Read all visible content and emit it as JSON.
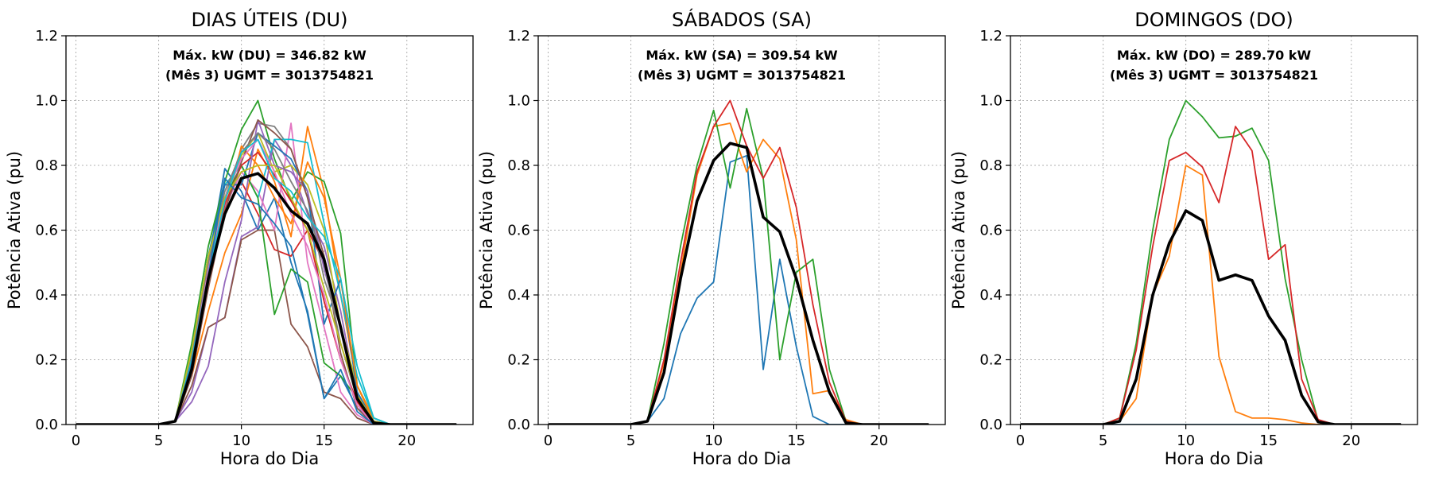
{
  "chart_data": [
    {
      "type": "line",
      "title": "DIAS ÚTEIS (DU)",
      "xlabel": "Hora do Dia",
      "ylabel": "Potência Ativa (pu)",
      "xlim": [
        -0.6,
        24
      ],
      "ylim": [
        0,
        1.2
      ],
      "xticks": [
        0,
        5,
        10,
        15,
        20
      ],
      "yticks": [
        0.0,
        0.2,
        0.4,
        0.6,
        0.8,
        1.0,
        1.2
      ],
      "grid": true,
      "annotation": [
        "Máx. kW (DU) = 346.82 kW",
        "(Mês 3)  UGMT = 3013754821"
      ],
      "x": [
        0,
        1,
        2,
        3,
        4,
        5,
        6,
        7,
        8,
        9,
        10,
        11,
        12,
        13,
        14,
        15,
        16,
        17,
        18,
        19,
        20,
        21,
        22,
        23
      ],
      "series": [
        {
          "color": "#1f77b4",
          "values": [
            0,
            0,
            0,
            0,
            0,
            0,
            0.01,
            0.2,
            0.5,
            0.79,
            0.72,
            0.6,
            0.7,
            0.5,
            0.35,
            0.08,
            0.15,
            0.05,
            0.01,
            0,
            0,
            0,
            0,
            0
          ]
        },
        {
          "color": "#ff7f0e",
          "values": [
            0,
            0,
            0,
            0,
            0,
            0,
            0.01,
            0.15,
            0.35,
            0.53,
            0.65,
            0.85,
            0.75,
            0.58,
            0.92,
            0.72,
            0.4,
            0.12,
            0.02,
            0,
            0,
            0,
            0,
            0
          ]
        },
        {
          "color": "#2ca02c",
          "values": [
            0,
            0,
            0,
            0,
            0,
            0,
            0.01,
            0.25,
            0.55,
            0.75,
            0.91,
            1.0,
            0.82,
            0.69,
            0.78,
            0.75,
            0.59,
            0.12,
            0.01,
            0,
            0,
            0,
            0,
            0
          ]
        },
        {
          "color": "#d62728",
          "values": [
            0,
            0,
            0,
            0,
            0,
            0,
            0.01,
            0.22,
            0.45,
            0.65,
            0.75,
            0.65,
            0.54,
            0.52,
            0.6,
            0.5,
            0.3,
            0.1,
            0.01,
            0,
            0,
            0,
            0,
            0
          ]
        },
        {
          "color": "#9467bd",
          "values": [
            0,
            0,
            0,
            0,
            0,
            0,
            0.01,
            0.1,
            0.3,
            0.33,
            0.58,
            0.61,
            0.88,
            0.8,
            0.65,
            0.55,
            0.35,
            0.08,
            0.01,
            0,
            0,
            0,
            0,
            0
          ]
        },
        {
          "color": "#8c564b",
          "values": [
            0,
            0,
            0,
            0,
            0,
            0,
            0.01,
            0.12,
            0.3,
            0.33,
            0.57,
            0.6,
            0.6,
            0.31,
            0.24,
            0.1,
            0.08,
            0.02,
            0,
            0,
            0,
            0,
            0,
            0
          ]
        },
        {
          "color": "#e377c2",
          "values": [
            0,
            0,
            0,
            0,
            0,
            0,
            0.01,
            0.2,
            0.45,
            0.67,
            0.78,
            0.72,
            0.6,
            0.93,
            0.5,
            0.3,
            0.1,
            0.03,
            0,
            0,
            0,
            0,
            0,
            0
          ]
        },
        {
          "color": "#7f7f7f",
          "values": [
            0,
            0,
            0,
            0,
            0,
            0,
            0.01,
            0.18,
            0.48,
            0.7,
            0.85,
            0.93,
            0.92,
            0.85,
            0.7,
            0.45,
            0.3,
            0.1,
            0.01,
            0,
            0,
            0,
            0,
            0
          ]
        },
        {
          "color": "#bcbd22",
          "values": [
            0,
            0,
            0,
            0,
            0,
            0,
            0.01,
            0.2,
            0.5,
            0.7,
            0.83,
            0.9,
            0.78,
            0.8,
            0.74,
            0.6,
            0.3,
            0.12,
            0.01,
            0,
            0,
            0,
            0,
            0
          ]
        },
        {
          "color": "#17becf",
          "values": [
            0,
            0,
            0,
            0,
            0,
            0,
            0.01,
            0.22,
            0.52,
            0.74,
            0.8,
            0.7,
            0.88,
            0.88,
            0.87,
            0.62,
            0.4,
            0.15,
            0.02,
            0,
            0,
            0,
            0,
            0
          ]
        },
        {
          "color": "#1f77b4",
          "values": [
            0,
            0,
            0,
            0,
            0,
            0,
            0.01,
            0.22,
            0.52,
            0.74,
            0.74,
            0.9,
            0.86,
            0.82,
            0.72,
            0.31,
            0.45,
            0.1,
            0.01,
            0,
            0,
            0,
            0,
            0
          ]
        },
        {
          "color": "#ff7f0e",
          "values": [
            0,
            0,
            0,
            0,
            0,
            0,
            0.01,
            0.2,
            0.45,
            0.65,
            0.86,
            0.8,
            0.7,
            0.62,
            0.81,
            0.7,
            0.45,
            0.12,
            0.01,
            0,
            0,
            0,
            0,
            0
          ]
        },
        {
          "color": "#2ca02c",
          "values": [
            0,
            0,
            0,
            0,
            0,
            0,
            0.01,
            0.2,
            0.5,
            0.7,
            0.8,
            0.7,
            0.34,
            0.48,
            0.44,
            0.19,
            0.15,
            0.08,
            0.01,
            0,
            0,
            0,
            0,
            0
          ]
        },
        {
          "color": "#d62728",
          "values": [
            0,
            0,
            0,
            0,
            0,
            0,
            0.01,
            0.18,
            0.47,
            0.68,
            0.8,
            0.84,
            0.77,
            0.69,
            0.6,
            0.38,
            0.2,
            0.07,
            0,
            0,
            0,
            0,
            0,
            0
          ]
        },
        {
          "color": "#9467bd",
          "values": [
            0,
            0,
            0,
            0,
            0,
            0,
            0.01,
            0.07,
            0.18,
            0.44,
            0.63,
            0.94,
            0.8,
            0.78,
            0.72,
            0.48,
            0.3,
            0.09,
            0.01,
            0,
            0,
            0,
            0,
            0
          ]
        },
        {
          "color": "#8c564b",
          "values": [
            0,
            0,
            0,
            0,
            0,
            0,
            0.01,
            0.15,
            0.42,
            0.66,
            0.81,
            0.94,
            0.9,
            0.85,
            0.7,
            0.52,
            0.22,
            0.05,
            0,
            0,
            0,
            0,
            0,
            0
          ]
        },
        {
          "color": "#e377c2",
          "values": [
            0,
            0,
            0,
            0,
            0,
            0,
            0.01,
            0.2,
            0.48,
            0.7,
            0.82,
            0.88,
            0.78,
            0.65,
            0.55,
            0.4,
            0.2,
            0.06,
            0,
            0,
            0,
            0,
            0,
            0
          ]
        },
        {
          "color": "#7f7f7f",
          "values": [
            0,
            0,
            0,
            0,
            0,
            0,
            0.01,
            0.22,
            0.5,
            0.72,
            0.84,
            0.9,
            0.85,
            0.75,
            0.66,
            0.5,
            0.25,
            0.08,
            0.01,
            0,
            0,
            0,
            0,
            0
          ]
        },
        {
          "color": "#bcbd22",
          "values": [
            0,
            0,
            0,
            0,
            0,
            0,
            0.01,
            0.23,
            0.52,
            0.7,
            0.78,
            0.8,
            0.8,
            0.7,
            0.6,
            0.42,
            0.25,
            0.09,
            0.01,
            0,
            0,
            0,
            0,
            0
          ]
        },
        {
          "color": "#17becf",
          "values": [
            0,
            0,
            0,
            0,
            0,
            0,
            0.01,
            0.2,
            0.46,
            0.69,
            0.84,
            0.88,
            0.76,
            0.72,
            0.64,
            0.58,
            0.45,
            0.18,
            0.02,
            0,
            0,
            0,
            0,
            0
          ]
        },
        {
          "color": "#1f77b4",
          "values": [
            0,
            0,
            0,
            0,
            0,
            0,
            0.01,
            0.19,
            0.46,
            0.76,
            0.7,
            0.68,
            0.62,
            0.55,
            0.34,
            0.08,
            0.17,
            0.04,
            0,
            0,
            0,
            0,
            0,
            0
          ]
        }
      ],
      "mean": {
        "color": "#000000",
        "values": [
          0,
          0,
          0,
          0,
          0,
          0,
          0.01,
          0.17,
          0.45,
          0.65,
          0.76,
          0.775,
          0.73,
          0.66,
          0.62,
          0.51,
          0.3,
          0.08,
          0.005,
          0,
          0,
          0,
          0,
          0
        ]
      }
    },
    {
      "type": "line",
      "title": "SÁBADOS (SA)",
      "xlabel": "Hora do Dia",
      "ylabel": "Potência Ativa (pu)",
      "xlim": [
        -0.6,
        24
      ],
      "ylim": [
        0,
        1.2
      ],
      "xticks": [
        0,
        5,
        10,
        15,
        20
      ],
      "yticks": [
        0.0,
        0.2,
        0.4,
        0.6,
        0.8,
        1.0,
        1.2
      ],
      "grid": true,
      "annotation": [
        "Máx. kW (SA) = 309.54 kW",
        "(Mês 3)  UGMT = 3013754821"
      ],
      "x": [
        0,
        1,
        2,
        3,
        4,
        5,
        6,
        7,
        8,
        9,
        10,
        11,
        12,
        13,
        14,
        15,
        16,
        17,
        18,
        19,
        20,
        21,
        22,
        23
      ],
      "series": [
        {
          "color": "#1f77b4",
          "values": [
            0,
            0,
            0,
            0,
            0,
            0,
            0.01,
            0.08,
            0.28,
            0.39,
            0.44,
            0.81,
            0.83,
            0.17,
            0.51,
            0.24,
            0.025,
            0,
            0,
            0,
            0,
            0,
            0,
            0
          ]
        },
        {
          "color": "#ff7f0e",
          "values": [
            0,
            0,
            0,
            0,
            0,
            0,
            0.01,
            0.19,
            0.47,
            0.77,
            0.92,
            0.93,
            0.78,
            0.88,
            0.82,
            0.57,
            0.095,
            0.105,
            0.015,
            0,
            0,
            0,
            0,
            0
          ]
        },
        {
          "color": "#2ca02c",
          "values": [
            0,
            0,
            0,
            0,
            0,
            0,
            0.01,
            0.25,
            0.55,
            0.8,
            0.97,
            0.73,
            0.975,
            0.76,
            0.2,
            0.47,
            0.51,
            0.17,
            0.01,
            0,
            0,
            0,
            0,
            0
          ]
        },
        {
          "color": "#d62728",
          "values": [
            0,
            0,
            0,
            0,
            0,
            0,
            0.01,
            0.2,
            0.5,
            0.78,
            0.92,
            1.0,
            0.86,
            0.76,
            0.855,
            0.67,
            0.37,
            0.13,
            0.01,
            0,
            0,
            0,
            0,
            0
          ]
        }
      ],
      "mean": {
        "color": "#000000",
        "values": [
          0,
          0,
          0,
          0,
          0,
          0,
          0.01,
          0.16,
          0.45,
          0.69,
          0.815,
          0.868,
          0.855,
          0.64,
          0.595,
          0.45,
          0.26,
          0.1,
          0.005,
          0,
          0,
          0,
          0,
          0
        ]
      }
    },
    {
      "type": "line",
      "title": "DOMINGOS (DO)",
      "xlabel": "Hora do Dia",
      "ylabel": "Potência Ativa (pu)",
      "xlim": [
        -0.6,
        24
      ],
      "ylim": [
        0,
        1.2
      ],
      "xticks": [
        0,
        5,
        10,
        15,
        20
      ],
      "yticks": [
        0.0,
        0.2,
        0.4,
        0.6,
        0.8,
        1.0,
        1.2
      ],
      "grid": true,
      "annotation": [
        "Máx. kW (DO) = 289.70 kW",
        "(Mês 3)  UGMT = 3013754821"
      ],
      "x": [
        0,
        1,
        2,
        3,
        4,
        5,
        6,
        7,
        8,
        9,
        10,
        11,
        12,
        13,
        14,
        15,
        16,
        17,
        18,
        19,
        20,
        21,
        22,
        23
      ],
      "series": [
        {
          "color": "#1f77b4",
          "values": [
            0,
            0,
            0,
            0,
            0,
            0,
            0,
            0,
            0,
            0,
            0,
            0,
            0,
            0,
            0,
            0,
            0,
            0,
            0,
            0,
            0,
            0,
            0,
            0
          ]
        },
        {
          "color": "#ff7f0e",
          "values": [
            0,
            0,
            0,
            0,
            0,
            0,
            0.01,
            0.08,
            0.4,
            0.52,
            0.8,
            0.77,
            0.21,
            0.04,
            0.02,
            0.02,
            0.015,
            0.005,
            0,
            0,
            0,
            0,
            0,
            0
          ]
        },
        {
          "color": "#2ca02c",
          "values": [
            0,
            0,
            0,
            0,
            0,
            0,
            0.02,
            0.25,
            0.6,
            0.88,
            1.0,
            0.95,
            0.885,
            0.89,
            0.915,
            0.815,
            0.45,
            0.2,
            0.01,
            0,
            0,
            0,
            0,
            0
          ]
        },
        {
          "color": "#d62728",
          "values": [
            0,
            0,
            0,
            0,
            0,
            0,
            0.02,
            0.23,
            0.55,
            0.815,
            0.84,
            0.795,
            0.685,
            0.92,
            0.845,
            0.51,
            0.555,
            0.14,
            0.015,
            0,
            0,
            0,
            0,
            0
          ]
        }
      ],
      "mean": {
        "color": "#000000",
        "values": [
          0,
          0,
          0,
          0,
          0,
          0,
          0.01,
          0.14,
          0.4,
          0.56,
          0.66,
          0.63,
          0.445,
          0.462,
          0.445,
          0.335,
          0.26,
          0.09,
          0.008,
          0,
          0,
          0,
          0,
          0
        ]
      }
    }
  ]
}
